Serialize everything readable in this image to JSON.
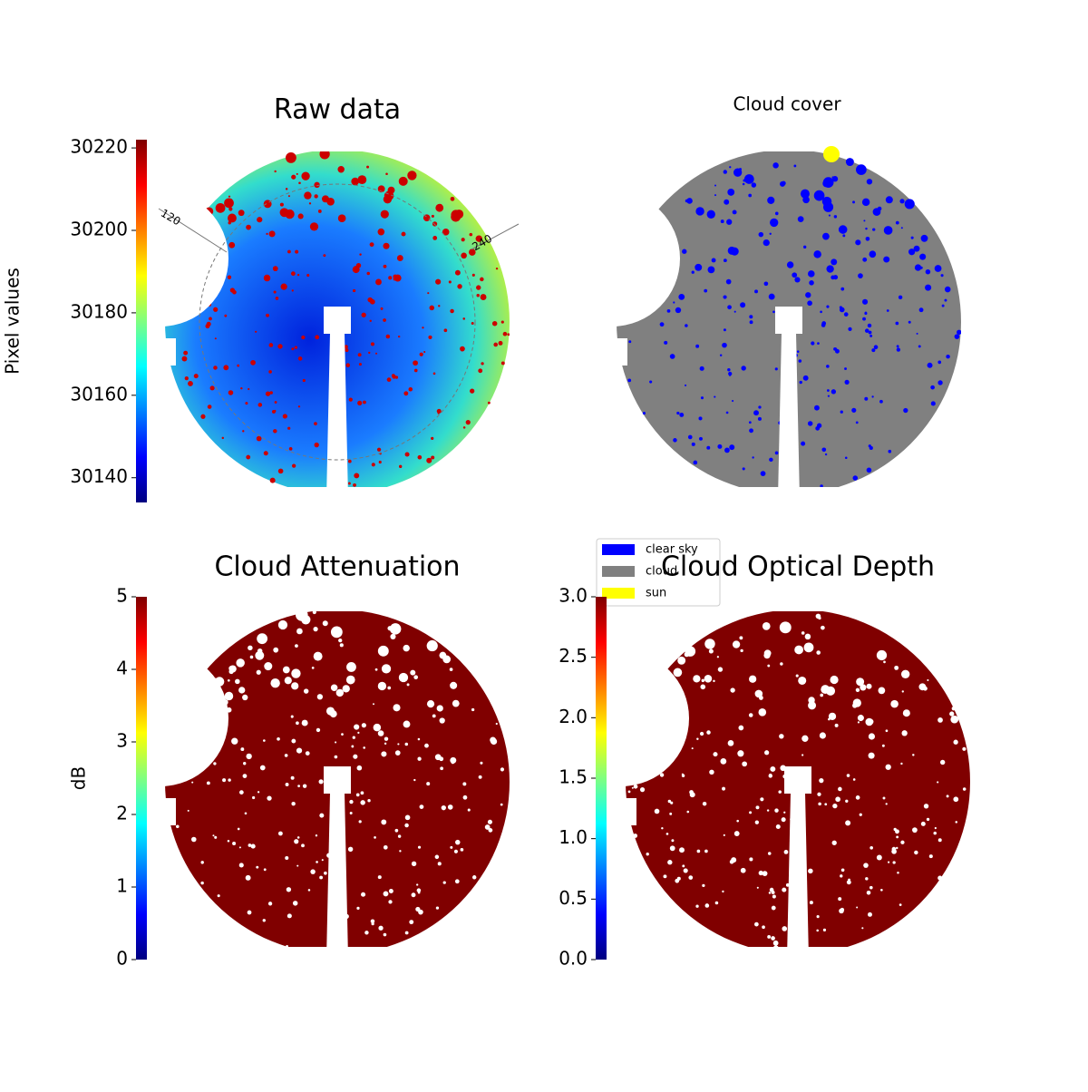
{
  "chart_data": [
    {
      "type": "image",
      "title": "Raw data",
      "colormap": "jet",
      "colorbar": {
        "label": "Pixel values",
        "ylim": [
          30134,
          30222
        ],
        "yticks": [
          30140,
          30160,
          30180,
          30200,
          30220
        ]
      },
      "annotations": [
        "120",
        "240"
      ]
    },
    {
      "type": "image",
      "title": "Cloud cover",
      "series": [
        {
          "name": "clear sky",
          "color": "#0000ff"
        },
        {
          "name": "cloud",
          "color": "#808080"
        },
        {
          "name": "sun",
          "color": "#ffff00"
        }
      ]
    },
    {
      "type": "image",
      "title": "Cloud Attenuation",
      "colormap": "jet",
      "colorbar": {
        "label": "dB",
        "ylim": [
          0,
          5
        ],
        "yticks": [
          0,
          1,
          2,
          3,
          4,
          5
        ]
      }
    },
    {
      "type": "image",
      "title": "Cloud Optical Depth",
      "colormap": "jet",
      "colorbar": {
        "ylim": [
          0,
          3
        ],
        "yticks": [
          {
            "value": 0,
            "label": "0.0"
          },
          0.5,
          {
            "value": 1,
            "label": "1.0"
          },
          1.5,
          {
            "value": 2,
            "label": "2.0"
          },
          2.5,
          {
            "value": 3,
            "label": "3.0"
          }
        ]
      }
    }
  ]
}
